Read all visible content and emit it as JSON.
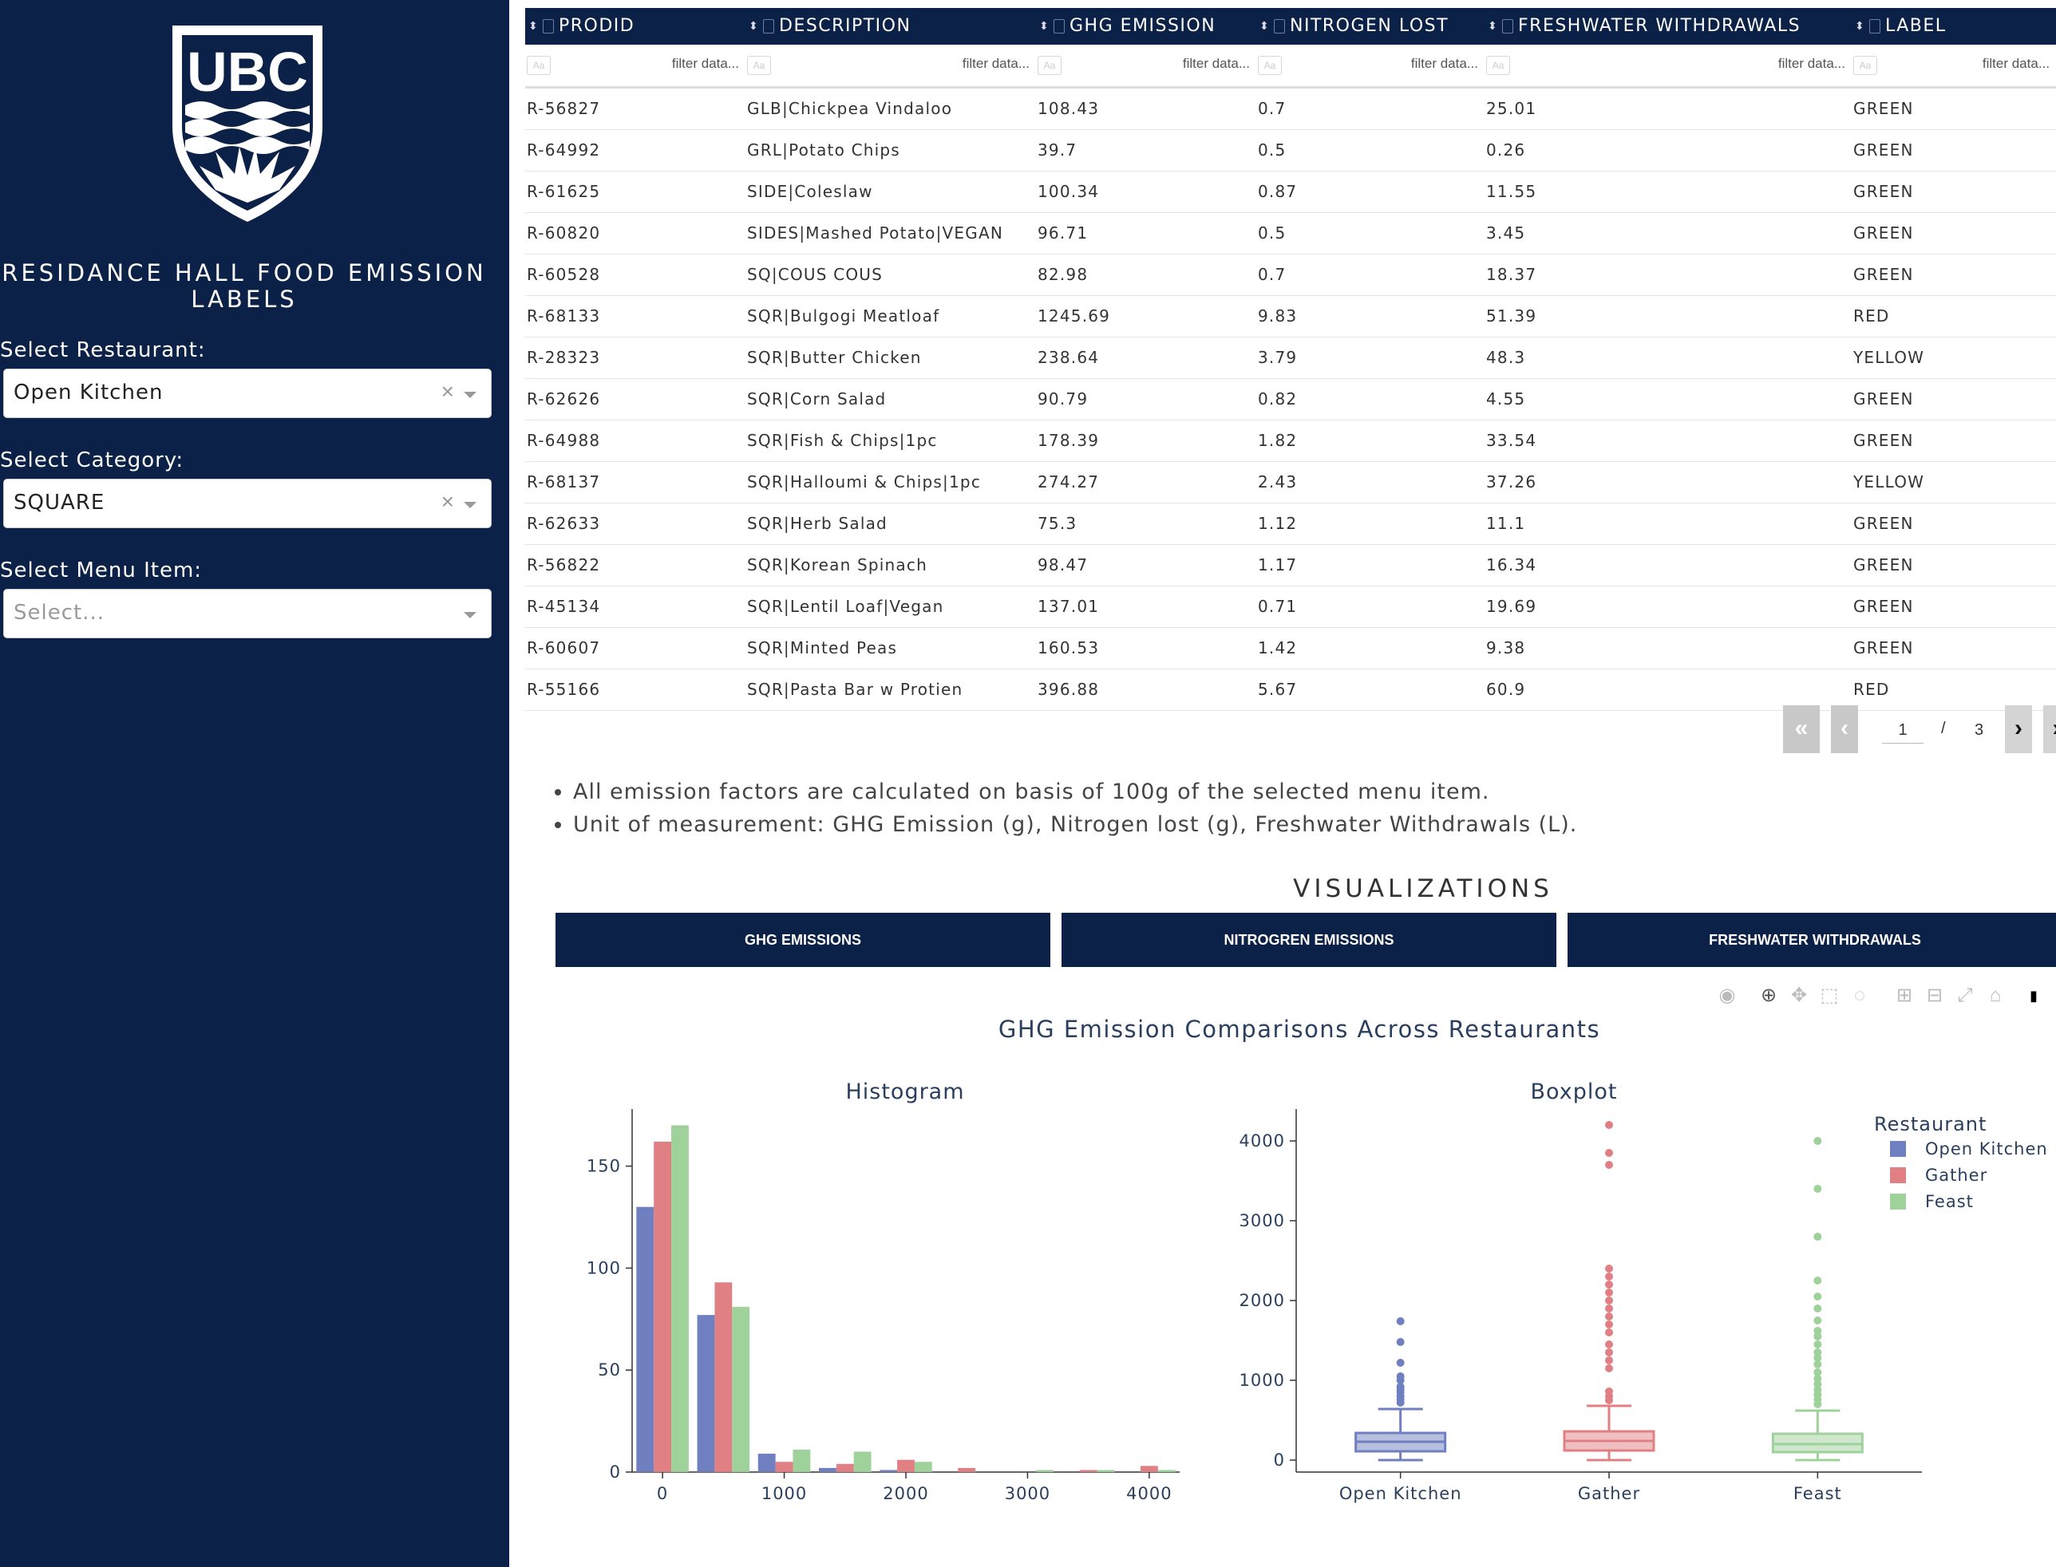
{
  "sidebar": {
    "logo_text": "UBC",
    "title": "RESIDANCE HALL FOOD EMISSION LABELS",
    "restaurant": {
      "label": "Select Restaurant:",
      "value": "Open Kitchen"
    },
    "category": {
      "label": "Select Category:",
      "value": "SQUARE"
    },
    "menu_item": {
      "label": "Select Menu Item:",
      "placeholder": "Select..."
    }
  },
  "table": {
    "columns": [
      "PRODID",
      "DESCRIPTION",
      "GHG EMISSION",
      "NITROGEN LOST",
      "FRESHWATER WITHDRAWALS",
      "LABEL"
    ],
    "filter_placeholder": "filter data...",
    "filter_aa": "Aa",
    "rows": [
      [
        "R-56827",
        "GLB|Chickpea Vindaloo",
        "108.43",
        "0.7",
        "25.01",
        "GREEN"
      ],
      [
        "R-64992",
        "GRL|Potato Chips",
        "39.7",
        "0.5",
        "0.26",
        "GREEN"
      ],
      [
        "R-61625",
        "SIDE|Coleslaw",
        "100.34",
        "0.87",
        "11.55",
        "GREEN"
      ],
      [
        "R-60820",
        "SIDES|Mashed Potato|VEGAN",
        "96.71",
        "0.5",
        "3.45",
        "GREEN"
      ],
      [
        "R-60528",
        "SQ|COUS COUS",
        "82.98",
        "0.7",
        "18.37",
        "GREEN"
      ],
      [
        "R-68133",
        "SQR|Bulgogi Meatloaf",
        "1245.69",
        "9.83",
        "51.39",
        "RED"
      ],
      [
        "R-28323",
        "SQR|Butter Chicken",
        "238.64",
        "3.79",
        "48.3",
        "YELLOW"
      ],
      [
        "R-62626",
        "SQR|Corn Salad",
        "90.79",
        "0.82",
        "4.55",
        "GREEN"
      ],
      [
        "R-64988",
        "SQR|Fish & Chips|1pc",
        "178.39",
        "1.82",
        "33.54",
        "GREEN"
      ],
      [
        "R-68137",
        "SQR|Halloumi & Chips|1pc",
        "274.27",
        "2.43",
        "37.26",
        "YELLOW"
      ],
      [
        "R-62633",
        "SQR|Herb Salad",
        "75.3",
        "1.12",
        "11.1",
        "GREEN"
      ],
      [
        "R-56822",
        "SQR|Korean Spinach",
        "98.47",
        "1.17",
        "16.34",
        "GREEN"
      ],
      [
        "R-45134",
        "SQR|Lentil Loaf|Vegan",
        "137.01",
        "0.71",
        "19.69",
        "GREEN"
      ],
      [
        "R-60607",
        "SQR|Minted Peas",
        "160.53",
        "1.42",
        "9.38",
        "GREEN"
      ],
      [
        "R-55166",
        "SQR|Pasta Bar w Protien",
        "396.88",
        "5.67",
        "60.9",
        "RED"
      ]
    ],
    "pager": {
      "current": "1",
      "sep": "/",
      "total": "3"
    }
  },
  "notes": [
    "All emission factors are calculated on basis of 100g of the selected menu item.",
    "Unit of measurement: GHG Emission (g), Nitrogen lost (g), Freshwater Withdrawals (L)."
  ],
  "viz": {
    "title": "VISUALIZATIONS",
    "tabs": [
      "GHG EMISSIONS",
      "NITROGREN EMISSIONS",
      "FRESHWATER WITHDRAWALS"
    ]
  },
  "colors": {
    "navy": "#0c2147",
    "open_kitchen": "#6f7fbf",
    "gather": "#e07f84",
    "feast": "#9fd19b"
  },
  "chart_data": {
    "title": "GHG Emission Comparisons Across Restaurants",
    "legend": {
      "title": "Restaurant",
      "entries": [
        "Open Kitchen",
        "Gather",
        "Feast"
      ],
      "placement": "right"
    },
    "histogram": {
      "type": "bar",
      "title": "Histogram",
      "categories": [
        "0",
        "500",
        "1000",
        "1500",
        "2000",
        "2500",
        "3000",
        "3500",
        "4000"
      ],
      "xticks": [
        "0",
        "1000",
        "2000",
        "3000",
        "4000"
      ],
      "yticks": [
        "0",
        "50",
        "100",
        "150"
      ],
      "ylim": [
        0,
        178
      ],
      "series": [
        {
          "name": "Open Kitchen",
          "values": [
            130,
            77,
            9,
            2,
            1,
            0,
            0,
            0,
            0
          ]
        },
        {
          "name": "Gather",
          "values": [
            162,
            93,
            5,
            4,
            6,
            2,
            0,
            1,
            3
          ]
        },
        {
          "name": "Feast",
          "values": [
            170,
            81,
            11,
            10,
            5,
            0,
            1,
            1,
            1
          ]
        }
      ]
    },
    "boxplot": {
      "type": "box",
      "title": "Boxplot",
      "categories": [
        "Open Kitchen",
        "Gather",
        "Feast"
      ],
      "yticks": [
        "0",
        "1000",
        "2000",
        "3000",
        "4000"
      ],
      "ylim": [
        -150,
        4400
      ],
      "boxes": [
        {
          "name": "Open Kitchen",
          "min": 0,
          "q1": 110,
          "median": 230,
          "q3": 340,
          "max": 640,
          "outliers": [
            720,
            760,
            800,
            850,
            880,
            920,
            1000,
            1050,
            1220,
            1480,
            1740
          ]
        },
        {
          "name": "Gather",
          "min": 0,
          "q1": 120,
          "median": 240,
          "q3": 360,
          "max": 680,
          "outliers": [
            750,
            800,
            860,
            1150,
            1250,
            1350,
            1450,
            1600,
            1700,
            1800,
            1900,
            2000,
            2100,
            2200,
            2300,
            2400,
            3700,
            3850,
            4200
          ]
        },
        {
          "name": "Feast",
          "min": 0,
          "q1": 100,
          "median": 200,
          "q3": 330,
          "max": 620,
          "outliers": [
            700,
            760,
            820,
            880,
            950,
            1020,
            1100,
            1200,
            1280,
            1350,
            1450,
            1550,
            1620,
            1750,
            1900,
            2050,
            2250,
            2800,
            3400,
            4000
          ]
        }
      ]
    }
  }
}
